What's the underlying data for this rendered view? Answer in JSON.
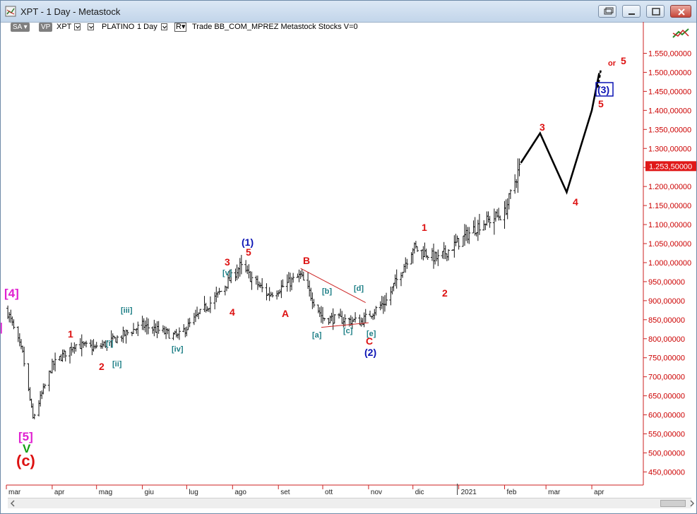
{
  "window": {
    "title": "XPT - 1 Day - Metastock",
    "buttons": [
      "restore-down-icon",
      "minimize-icon",
      "maximize-icon",
      "close-icon"
    ]
  },
  "toolbar": {
    "sa_label": "SA",
    "vp_label": "VP",
    "symbol": "XPT",
    "name": "PLATINO",
    "period": "1 Day",
    "r_label": "R",
    "info": "Trade  BB_COM_MPREZ  Metastock  Stocks  V=0"
  },
  "colors": {
    "price_axis_text": "#cc0000",
    "axis_line": "#cc2222",
    "bars": "#111111",
    "wave_red": "#dd1111",
    "wave_blue": "#0a12b4",
    "wave_teal": "#1d7f86",
    "wave_magenta": "#e020d0",
    "wave_green": "#12a012",
    "triangle_line": "#cc2222",
    "projection": "#000000",
    "price_badge": "#e01818"
  },
  "price_axis": {
    "labels": [
      "1.550,00000",
      "1.500,00000",
      "1.450,00000",
      "1.400,00000",
      "1.350,00000",
      "1.300,00000",
      "1.250,00000",
      "1.200,00000",
      "1.150,00000",
      "1.100,00000",
      "1.050,00000",
      "1.000,00000",
      "950,00000",
      "900,00000",
      "850,00000",
      "800,00000",
      "750,00000",
      "700,00000",
      "650,00000",
      "600,00000",
      "550,00000",
      "500,00000",
      "450,00000"
    ],
    "last_price_label": "1.253,50000"
  },
  "time_axis": {
    "labels": [
      "mar",
      "apr",
      "mag",
      "giu",
      "lug",
      "ago",
      "set",
      "ott",
      "nov",
      "dic",
      "2021",
      "feb",
      "mar",
      "apr"
    ]
  },
  "chart_data": {
    "type": "ohlc",
    "symbol": "XPT",
    "interval": "1 Day",
    "ylim": [
      420,
      1600
    ],
    "last_price": 1253.5,
    "approx_closes": [
      {
        "date": "2020-03-01",
        "value": 880
      },
      {
        "date": "2020-03-12",
        "value": 760
      },
      {
        "date": "2020-03-19",
        "value": 590
      },
      {
        "date": "2020-04-01",
        "value": 730
      },
      {
        "date": "2020-04-16",
        "value": 785
      },
      {
        "date": "2020-05-01",
        "value": 775
      },
      {
        "date": "2020-06-01",
        "value": 835
      },
      {
        "date": "2020-06-25",
        "value": 805
      },
      {
        "date": "2020-07-22",
        "value": 915
      },
      {
        "date": "2020-08-06",
        "value": 990
      },
      {
        "date": "2020-08-25",
        "value": 915
      },
      {
        "date": "2020-09-16",
        "value": 965
      },
      {
        "date": "2020-10-01",
        "value": 855
      },
      {
        "date": "2020-10-27",
        "value": 845
      },
      {
        "date": "2020-11-13",
        "value": 900
      },
      {
        "date": "2020-12-01",
        "value": 1040
      },
      {
        "date": "2020-12-18",
        "value": 1010
      },
      {
        "date": "2021-01-15",
        "value": 1100
      },
      {
        "date": "2021-02-01",
        "value": 1130
      },
      {
        "date": "2021-02-11",
        "value": 1250
      }
    ],
    "projection": [
      {
        "date": "2021-02-12",
        "value": 1262
      },
      {
        "date": "2021-02-25",
        "value": 1340
      },
      {
        "date": "2021-03-15",
        "value": 1185
      },
      {
        "date": "2021-04-01",
        "value": 1400
      },
      {
        "date": "2021-04-06",
        "value": 1498
      }
    ],
    "triangle_upper": [
      {
        "date": "2020-09-16",
        "value": 985
      },
      {
        "date": "2020-10-30",
        "value": 895
      }
    ],
    "triangle_lower": [
      {
        "date": "2020-09-30",
        "value": 830
      },
      {
        "date": "2020-11-01",
        "value": 842
      }
    ],
    "wave_labels": [
      {
        "text": "[4]",
        "color": "magenta",
        "size": "lg"
      },
      {
        "text": "[5]",
        "color": "magenta",
        "size": "lg"
      },
      {
        "text": "V",
        "color": "green",
        "size": "lg"
      },
      {
        "text": "(c)",
        "color": "red",
        "size": "xl"
      },
      {
        "text": "]",
        "color": "magenta",
        "size": "lg"
      },
      {
        "text": "1",
        "color": "red",
        "size": "md"
      },
      {
        "text": "2",
        "color": "red",
        "size": "md"
      },
      {
        "text": "[i]",
        "color": "teal",
        "size": "sm"
      },
      {
        "text": "[ii]",
        "color": "teal",
        "size": "sm"
      },
      {
        "text": "[iii]",
        "color": "teal",
        "size": "sm"
      },
      {
        "text": "[iv]",
        "color": "teal",
        "size": "sm"
      },
      {
        "text": "[v]",
        "color": "teal",
        "size": "sm"
      },
      {
        "text": "3",
        "color": "red",
        "size": "md"
      },
      {
        "text": "4",
        "color": "red",
        "size": "md"
      },
      {
        "text": "5",
        "color": "red",
        "size": "md"
      },
      {
        "text": "(1)",
        "color": "blue",
        "size": "md"
      },
      {
        "text": "A",
        "color": "red",
        "size": "md"
      },
      {
        "text": "B",
        "color": "red",
        "size": "md"
      },
      {
        "text": "C",
        "color": "red",
        "size": "md"
      },
      {
        "text": "[a]",
        "color": "teal",
        "size": "sm"
      },
      {
        "text": "[b]",
        "color": "teal",
        "size": "sm"
      },
      {
        "text": "[c]",
        "color": "teal",
        "size": "sm"
      },
      {
        "text": "[d]",
        "color": "teal",
        "size": "sm"
      },
      {
        "text": "[e]",
        "color": "teal",
        "size": "sm"
      },
      {
        "text": "(2)",
        "color": "blue",
        "size": "md"
      },
      {
        "text": "1",
        "color": "red",
        "size": "md"
      },
      {
        "text": "2",
        "color": "red",
        "size": "md"
      },
      {
        "text": "3",
        "color": "red",
        "size": "md"
      },
      {
        "text": "4",
        "color": "red",
        "size": "md"
      },
      {
        "text": "5",
        "color": "red",
        "size": "md"
      },
      {
        "text": "(3)",
        "color": "blue",
        "size": "md",
        "boxed": true
      },
      {
        "text": "or",
        "color": "red",
        "size": "sm"
      },
      {
        "text": "5",
        "color": "red",
        "size": "md"
      }
    ]
  }
}
